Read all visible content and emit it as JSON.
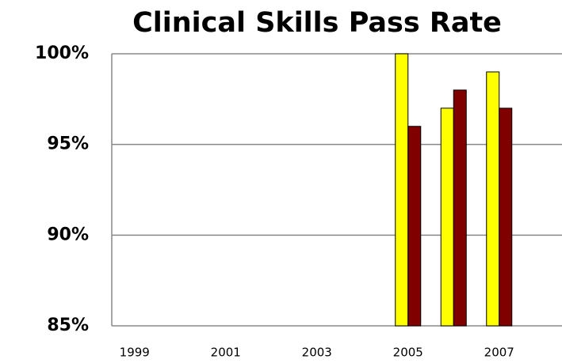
{
  "chart_data": {
    "type": "bar",
    "title": "Clinical Skills Pass Rate",
    "categories": [
      "1999",
      null,
      "2001",
      null,
      "2003",
      null,
      "2005",
      null,
      "2007",
      null
    ],
    "series": [
      {
        "color": "#ffff00",
        "values": [
          null,
          null,
          null,
          null,
          null,
          null,
          100,
          97,
          99,
          null
        ]
      },
      {
        "color": "#800000",
        "values": [
          null,
          null,
          null,
          null,
          null,
          null,
          96,
          98,
          97,
          null
        ]
      }
    ],
    "ylim": [
      85,
      100
    ],
    "yticks": [
      {
        "value": 85,
        "label": "85%"
      },
      {
        "value": 90,
        "label": "90%"
      },
      {
        "value": 95,
        "label": "95%"
      },
      {
        "value": 100,
        "label": "100%"
      }
    ],
    "grid": true
  }
}
